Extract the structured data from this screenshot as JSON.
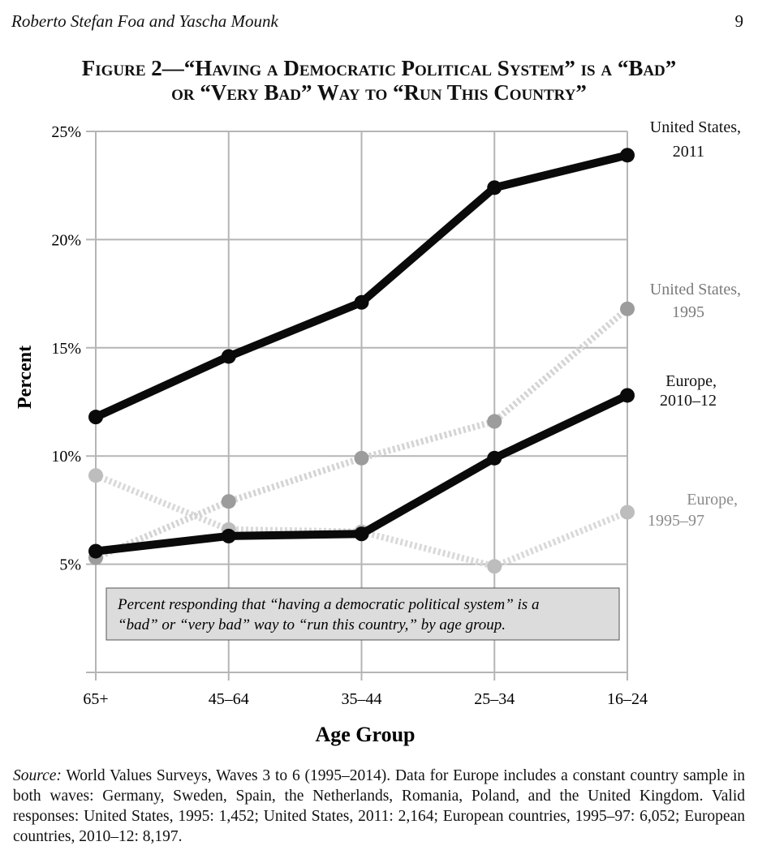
{
  "header": {
    "authors": "Roberto Stefan Foa and Yascha Mounk",
    "page_number": "9"
  },
  "chart_data": {
    "type": "line",
    "title_line1": "Figure 2—“Having a Democratic Political System” is a “Bad”",
    "title_line2": "or “Very Bad” Way to “Run This Country”",
    "xlabel": "Age Group",
    "ylabel": "Percent",
    "categories": [
      "65+",
      "45–64",
      "35–44",
      "25–34",
      "16–24"
    ],
    "ylim": [
      0,
      25
    ],
    "yticks": [
      {
        "value": 5,
        "label": "5%"
      },
      {
        "value": 10,
        "label": "10%"
      },
      {
        "value": 15,
        "label": "15%"
      },
      {
        "value": 20,
        "label": "20%"
      },
      {
        "value": 25,
        "label": "25%"
      }
    ],
    "grid": true,
    "series": [
      {
        "name": "Europe, 1995–97",
        "label_line1": "Europe,",
        "label_line2": "1995–97",
        "values": [
          9.1,
          6.6,
          6.5,
          4.9,
          7.4
        ],
        "style": "dotted",
        "line_color": "#d9d9d9",
        "marker_color": "#bdbdbd",
        "label_color": "#8a8a8a"
      },
      {
        "name": "United States, 1995",
        "label_line1": "United States,",
        "label_line2": "1995",
        "values": [
          5.3,
          7.9,
          9.9,
          11.6,
          16.8
        ],
        "style": "dotted",
        "line_color": "#d4d4d4",
        "marker_color": "#9c9c9c",
        "label_color": "#7a7a7a"
      },
      {
        "name": "Europe, 2010–12",
        "label_line1": "Europe,",
        "label_line2": "2010–12",
        "values": [
          5.6,
          6.3,
          6.4,
          9.9,
          12.8
        ],
        "style": "solid",
        "line_color": "#0a0a0a",
        "marker_color": "#0a0a0a",
        "label_color": "#111111"
      },
      {
        "name": "United States, 2011",
        "label_line1": "United States,",
        "label_line2": "2011",
        "values": [
          11.8,
          14.6,
          17.1,
          22.4,
          23.9
        ],
        "style": "solid",
        "line_color": "#0a0a0a",
        "marker_color": "#0a0a0a",
        "label_color": "#111111"
      }
    ],
    "annotation_line1": "Percent responding that “having a democratic political system” is a",
    "annotation_line2": "“bad” or “very bad” way to “run this country,” by age group."
  },
  "source": {
    "label": "Source:",
    "text": " World Values Surveys, Waves 3 to 6 (1995–2014). Data for Europe includes a constant country sample in both waves: Germany, Sweden, Spain, the Netherlands, Romania, Poland, and the United Kingdom. Valid responses: United States, 1995: 1,452; United States, 2011: 2,164; European countries, 1995–97: 6,052; European countries, 2010–12: 8,197."
  }
}
